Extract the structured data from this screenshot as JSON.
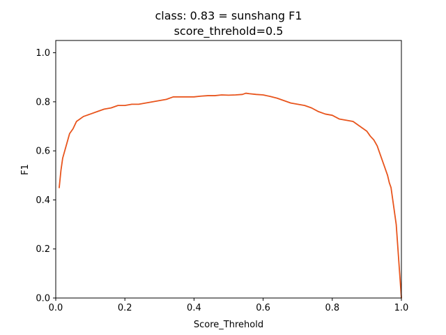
{
  "chart_data": {
    "type": "line",
    "title": "class: 0.83 = sunshang F1",
    "subtitle": "score_threhold=0.5",
    "xlabel": "Score_Threhold",
    "ylabel": "F1",
    "xlim": [
      0,
      1.0
    ],
    "ylim": [
      0,
      1.05
    ],
    "xticks": [
      0.0,
      0.2,
      0.4,
      0.6,
      0.8,
      1.0
    ],
    "xtick_labels": [
      "0.0",
      "0.2",
      "0.4",
      "0.6",
      "0.8",
      "1.0"
    ],
    "yticks": [
      0.0,
      0.2,
      0.4,
      0.6,
      0.8,
      1.0
    ],
    "ytick_labels": [
      "0.0",
      "0.2",
      "0.4",
      "0.6",
      "0.8",
      "1.0"
    ],
    "grid": false,
    "legend": "none",
    "line_color": "#e8541c",
    "series": [
      {
        "x": [
          0.01,
          0.015,
          0.02,
          0.03,
          0.04,
          0.05,
          0.06,
          0.07,
          0.08,
          0.09,
          0.1,
          0.12,
          0.14,
          0.16,
          0.18,
          0.2,
          0.22,
          0.24,
          0.26,
          0.28,
          0.3,
          0.32,
          0.34,
          0.36,
          0.38,
          0.4,
          0.42,
          0.44,
          0.46,
          0.48,
          0.5,
          0.52,
          0.54,
          0.55,
          0.56,
          0.58,
          0.6,
          0.62,
          0.64,
          0.66,
          0.68,
          0.7,
          0.72,
          0.74,
          0.76,
          0.78,
          0.8,
          0.82,
          0.84,
          0.86,
          0.88,
          0.9,
          0.91,
          0.92,
          0.93,
          0.94,
          0.95,
          0.96,
          0.965,
          0.97,
          0.975,
          0.98,
          0.985,
          0.99,
          0.995,
          1.0
        ],
        "y": [
          0.45,
          0.52,
          0.57,
          0.62,
          0.67,
          0.69,
          0.72,
          0.73,
          0.74,
          0.745,
          0.75,
          0.76,
          0.77,
          0.775,
          0.785,
          0.785,
          0.79,
          0.79,
          0.795,
          0.8,
          0.805,
          0.81,
          0.82,
          0.82,
          0.82,
          0.82,
          0.823,
          0.825,
          0.825,
          0.828,
          0.827,
          0.828,
          0.83,
          0.835,
          0.833,
          0.83,
          0.828,
          0.822,
          0.815,
          0.805,
          0.795,
          0.79,
          0.785,
          0.775,
          0.76,
          0.75,
          0.745,
          0.73,
          0.725,
          0.72,
          0.7,
          0.68,
          0.66,
          0.645,
          0.62,
          0.58,
          0.54,
          0.5,
          0.47,
          0.45,
          0.4,
          0.35,
          0.3,
          0.2,
          0.1,
          0.0
        ]
      }
    ]
  }
}
